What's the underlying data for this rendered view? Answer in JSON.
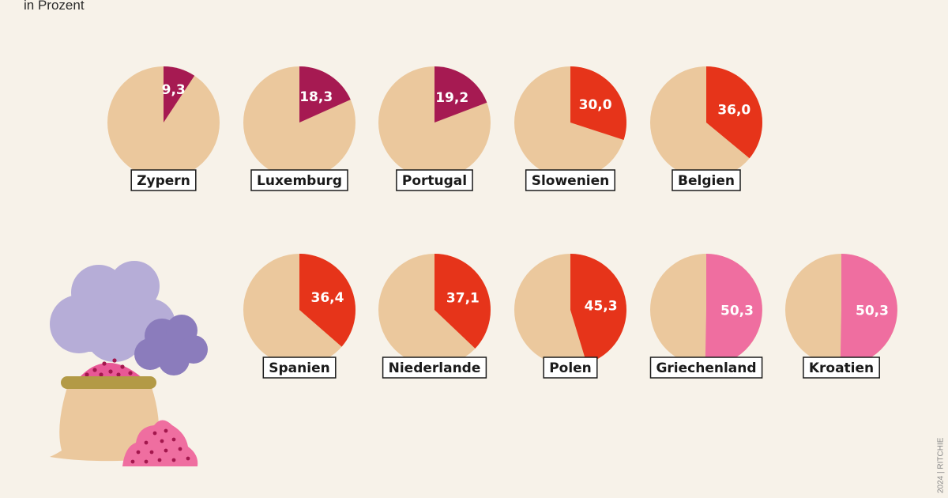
{
  "header": {
    "subtitle": "in Prozent"
  },
  "credit": "2024 | RITCHIE",
  "colors": {
    "background": "#f7f2e9",
    "pie_base": "#ebc89d",
    "low": "#a61a52",
    "mid": "#e6341a",
    "high": "#ef6ea0"
  },
  "chart_data": {
    "type": "pie",
    "title": "",
    "unit": "Prozent",
    "layout": "small-multiples",
    "items": [
      {
        "country": "Zypern",
        "value": 9.3,
        "label": "9,3",
        "color": "#a61a52"
      },
      {
        "country": "Luxemburg",
        "value": 18.3,
        "label": "18,3",
        "color": "#a61a52"
      },
      {
        "country": "Portugal",
        "value": 19.2,
        "label": "19,2",
        "color": "#a61a52"
      },
      {
        "country": "Slowenien",
        "value": 30.0,
        "label": "30,0",
        "color": "#e6341a"
      },
      {
        "country": "Belgien",
        "value": 36.0,
        "label": "36,0",
        "color": "#e6341a"
      },
      {
        "country": "Spanien",
        "value": 36.4,
        "label": "36,4",
        "color": "#e6341a"
      },
      {
        "country": "Niederlande",
        "value": 37.1,
        "label": "37,1",
        "color": "#e6341a"
      },
      {
        "country": "Polen",
        "value": 45.3,
        "label": "45,3",
        "color": "#e6341a"
      },
      {
        "country": "Griechenland",
        "value": 50.3,
        "label": "50,3",
        "color": "#ef6ea0"
      },
      {
        "country": "Kroatien",
        "value": 50.3,
        "label": "50,3",
        "color": "#ef6ea0"
      }
    ]
  },
  "illustration": {
    "icons": [
      "cloud-icon",
      "cloud-icon",
      "fertilizer-sack-icon",
      "granule-pile-icon"
    ]
  }
}
